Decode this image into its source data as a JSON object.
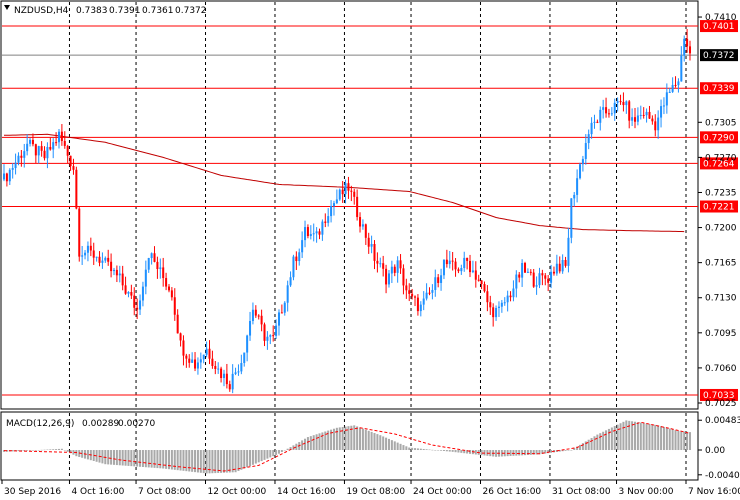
{
  "chart_data": [
    {
      "type": "candlestick",
      "header": {
        "symbol": "NZDUSD,H4",
        "open": "0.7383",
        "high": "0.7391",
        "low": "0.7361",
        "close": "0.7372"
      },
      "ylim": [
        0.702,
        0.7425
      ],
      "y_ticks": [
        "0.7410",
        "0.7305",
        "0.7270",
        "0.7235",
        "0.7200",
        "0.7165",
        "0.7130",
        "0.7095",
        "0.7060",
        "0.7025"
      ],
      "x_ticks": [
        "30 Sep 2016",
        "4 Oct 16:00",
        "7 Oct 08:00",
        "12 Oct 00:00",
        "14 Oct 16:00",
        "19 Oct 08:00",
        "24 Oct 00:00",
        "26 Oct 16:00",
        "31 Oct 08:00",
        "3 Nov 00:00",
        "7 Nov 16:00"
      ],
      "horizontal_lines": [
        {
          "price": 0.7401,
          "label": "0.7401",
          "color": "#ff0000"
        },
        {
          "price": 0.7339,
          "label": "0.7339",
          "color": "#ff0000"
        },
        {
          "price": 0.729,
          "label": "0.7290",
          "color": "#ff0000"
        },
        {
          "price": 0.7264,
          "label": "0.7264",
          "color": "#ff0000"
        },
        {
          "price": 0.7221,
          "label": "0.7221",
          "color": "#ff0000"
        },
        {
          "price": 0.7033,
          "label": "0.7033",
          "color": "#ff0000"
        }
      ],
      "current_price": {
        "price": 0.7372,
        "label": "0.7372"
      },
      "colors": {
        "up": "#1e90ff",
        "down": "#ff0000",
        "ma": "#c00000",
        "level": "#ff0000",
        "grid": "#000000"
      },
      "moving_average": [
        {
          "i": 0,
          "v": 0.7292
        },
        {
          "i": 15,
          "v": 0.7293
        },
        {
          "i": 35,
          "v": 0.7285
        },
        {
          "i": 55,
          "v": 0.727
        },
        {
          "i": 75,
          "v": 0.7252
        },
        {
          "i": 95,
          "v": 0.7243
        },
        {
          "i": 120,
          "v": 0.724
        },
        {
          "i": 140,
          "v": 0.7236
        },
        {
          "i": 155,
          "v": 0.7225
        },
        {
          "i": 170,
          "v": 0.721
        },
        {
          "i": 185,
          "v": 0.7202
        },
        {
          "i": 200,
          "v": 0.7198
        },
        {
          "i": 215,
          "v": 0.7197
        },
        {
          "i": 235,
          "v": 0.7196
        }
      ],
      "candle_path": [
        {
          "i": 0,
          "v": 0.7248
        },
        {
          "i": 8,
          "v": 0.7283
        },
        {
          "i": 14,
          "v": 0.727
        },
        {
          "i": 19,
          "v": 0.7292
        },
        {
          "i": 24,
          "v": 0.726
        },
        {
          "i": 26,
          "v": 0.7178
        },
        {
          "i": 32,
          "v": 0.7172
        },
        {
          "i": 40,
          "v": 0.7148
        },
        {
          "i": 46,
          "v": 0.7118
        },
        {
          "i": 50,
          "v": 0.7175
        },
        {
          "i": 55,
          "v": 0.715
        },
        {
          "i": 58,
          "v": 0.7135
        },
        {
          "i": 61,
          "v": 0.7083
        },
        {
          "i": 66,
          "v": 0.7063
        },
        {
          "i": 70,
          "v": 0.7079
        },
        {
          "i": 74,
          "v": 0.7058
        },
        {
          "i": 78,
          "v": 0.7045
        },
        {
          "i": 82,
          "v": 0.7068
        },
        {
          "i": 86,
          "v": 0.712
        },
        {
          "i": 90,
          "v": 0.7092
        },
        {
          "i": 93,
          "v": 0.7088
        },
        {
          "i": 96,
          "v": 0.712
        },
        {
          "i": 100,
          "v": 0.7165
        },
        {
          "i": 104,
          "v": 0.7195
        },
        {
          "i": 108,
          "v": 0.719
        },
        {
          "i": 112,
          "v": 0.7218
        },
        {
          "i": 116,
          "v": 0.7232
        },
        {
          "i": 119,
          "v": 0.724
        },
        {
          "i": 124,
          "v": 0.72
        },
        {
          "i": 128,
          "v": 0.717
        },
        {
          "i": 132,
          "v": 0.715
        },
        {
          "i": 136,
          "v": 0.7163
        },
        {
          "i": 140,
          "v": 0.713
        },
        {
          "i": 144,
          "v": 0.712
        },
        {
          "i": 148,
          "v": 0.7138
        },
        {
          "i": 152,
          "v": 0.7165
        },
        {
          "i": 156,
          "v": 0.7158
        },
        {
          "i": 160,
          "v": 0.7166
        },
        {
          "i": 164,
          "v": 0.7148
        },
        {
          "i": 168,
          "v": 0.7118
        },
        {
          "i": 171,
          "v": 0.7116
        },
        {
          "i": 175,
          "v": 0.7135
        },
        {
          "i": 179,
          "v": 0.7158
        },
        {
          "i": 183,
          "v": 0.7148
        },
        {
          "i": 188,
          "v": 0.715
        },
        {
          "i": 191,
          "v": 0.7163
        },
        {
          "i": 194,
          "v": 0.716
        },
        {
          "i": 196,
          "v": 0.7225
        },
        {
          "i": 199,
          "v": 0.7262
        },
        {
          "i": 202,
          "v": 0.7295
        },
        {
          "i": 206,
          "v": 0.7312
        },
        {
          "i": 210,
          "v": 0.7318
        },
        {
          "i": 214,
          "v": 0.7326
        },
        {
          "i": 217,
          "v": 0.7305
        },
        {
          "i": 221,
          "v": 0.7315
        },
        {
          "i": 225,
          "v": 0.7303
        },
        {
          "i": 229,
          "v": 0.733
        },
        {
          "i": 233,
          "v": 0.7348
        },
        {
          "i": 235,
          "v": 0.7392
        },
        {
          "i": 237,
          "v": 0.7372
        }
      ],
      "candle_count": 238
    },
    {
      "type": "histogram",
      "header": {
        "name": "MACD(12,26,9)",
        "main": "0.00289",
        "signal": "0.00270"
      },
      "ylim": [
        -0.0047,
        0.006
      ],
      "y_ticks": [
        "0.00483",
        "0.00",
        "-0.00402"
      ],
      "colors": {
        "bars": "#a9a9a9",
        "signal": "#ff0000"
      },
      "values_path": [
        {
          "i": 0,
          "v": -0.0003
        },
        {
          "i": 20,
          "v": 0.0002
        },
        {
          "i": 25,
          "v": -0.001
        },
        {
          "i": 35,
          "v": -0.0023
        },
        {
          "i": 55,
          "v": -0.003
        },
        {
          "i": 70,
          "v": -0.0038
        },
        {
          "i": 80,
          "v": -0.0036
        },
        {
          "i": 95,
          "v": -0.0006
        },
        {
          "i": 105,
          "v": 0.0021
        },
        {
          "i": 115,
          "v": 0.0036
        },
        {
          "i": 121,
          "v": 0.004
        },
        {
          "i": 130,
          "v": 0.0024
        },
        {
          "i": 140,
          "v": 0.0004
        },
        {
          "i": 155,
          "v": -0.0003
        },
        {
          "i": 170,
          "v": -0.0011
        },
        {
          "i": 185,
          "v": -0.0007
        },
        {
          "i": 196,
          "v": 0.0
        },
        {
          "i": 205,
          "v": 0.0025
        },
        {
          "i": 215,
          "v": 0.0048
        },
        {
          "i": 226,
          "v": 0.004
        },
        {
          "i": 233,
          "v": 0.0031
        },
        {
          "i": 237,
          "v": 0.0029
        }
      ],
      "signal_path": [
        {
          "i": 0,
          "v": -0.0001
        },
        {
          "i": 25,
          "v": -0.0004
        },
        {
          "i": 40,
          "v": -0.0016
        },
        {
          "i": 60,
          "v": -0.0027
        },
        {
          "i": 76,
          "v": -0.0034
        },
        {
          "i": 88,
          "v": -0.0025
        },
        {
          "i": 100,
          "v": 0.0003
        },
        {
          "i": 112,
          "v": 0.0027
        },
        {
          "i": 123,
          "v": 0.0036
        },
        {
          "i": 135,
          "v": 0.0026
        },
        {
          "i": 148,
          "v": 0.0008
        },
        {
          "i": 165,
          "v": -0.0005
        },
        {
          "i": 185,
          "v": -0.0006
        },
        {
          "i": 198,
          "v": 0.0004
        },
        {
          "i": 210,
          "v": 0.003
        },
        {
          "i": 220,
          "v": 0.0045
        },
        {
          "i": 230,
          "v": 0.0035
        },
        {
          "i": 237,
          "v": 0.0027
        }
      ]
    }
  ]
}
